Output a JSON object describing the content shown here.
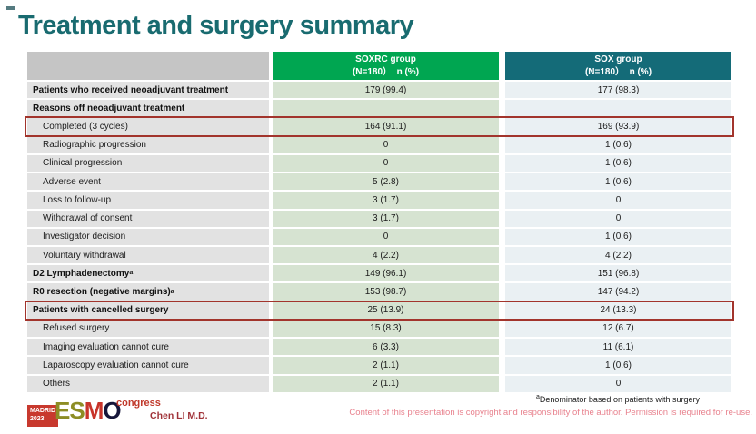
{
  "slide": {
    "title": "Treatment and surgery summary",
    "colors": {
      "title_text": "#196b70",
      "soxrc_header_bg": "#00a651",
      "sox_header_bg": "#146b78",
      "label_header_bg": "#c5c5c5",
      "label_cell_bg": "#e2e2e2",
      "soxrc_cell_bg": "#d6e3d1",
      "sox_cell_bg": "#eaf0f3",
      "highlight_border": "#a2342c",
      "copyright_text": "#e8828e"
    }
  },
  "table": {
    "columns": [
      {
        "label": "SOXRC group",
        "sublabel": "(N=180）  n (%)"
      },
      {
        "label": "SOX group",
        "sublabel": "(N=180）  n (%)"
      }
    ],
    "rows": [
      {
        "label": "Patients who received neoadjuvant treatment",
        "bold": true,
        "indent": false,
        "highlight": false,
        "soxrc": "179 (99.4)",
        "sox": "177 (98.3)"
      },
      {
        "label": "Reasons off neoadjuvant treatment",
        "bold": true,
        "indent": false,
        "highlight": false,
        "soxrc": "",
        "sox": ""
      },
      {
        "label": "Completed (3 cycles)",
        "bold": false,
        "indent": true,
        "highlight": true,
        "soxrc": "164 (91.1)",
        "sox": "169 (93.9)"
      },
      {
        "label": "Radiographic progression",
        "bold": false,
        "indent": true,
        "highlight": false,
        "soxrc": "0",
        "sox": "1 (0.6)"
      },
      {
        "label": "Clinical progression",
        "bold": false,
        "indent": true,
        "highlight": false,
        "soxrc": "0",
        "sox": "1 (0.6)"
      },
      {
        "label": "Adverse event",
        "bold": false,
        "indent": true,
        "highlight": false,
        "soxrc": "5 (2.8)",
        "sox": "1 (0.6)"
      },
      {
        "label": "Loss to follow-up",
        "bold": false,
        "indent": true,
        "highlight": false,
        "soxrc": "3 (1.7)",
        "sox": "0"
      },
      {
        "label": "Withdrawal of consent",
        "bold": false,
        "indent": true,
        "highlight": false,
        "soxrc": "3 (1.7)",
        "sox": "0"
      },
      {
        "label": "Investigator decision",
        "bold": false,
        "indent": true,
        "highlight": false,
        "soxrc": "0",
        "sox": "1 (0.6)"
      },
      {
        "label": "Voluntary withdrawal",
        "bold": false,
        "indent": true,
        "highlight": false,
        "soxrc": "4 (2.2)",
        "sox": "4 (2.2)"
      },
      {
        "label": "D2 Lymphadenectomy",
        "sup": "a",
        "bold": true,
        "indent": false,
        "highlight": false,
        "soxrc": "149 (96.1)",
        "sox": "151 (96.8)"
      },
      {
        "label": "R0 resection (negative margins)",
        "sup": "a",
        "bold": true,
        "indent": false,
        "highlight": false,
        "soxrc": "153 (98.7)",
        "sox": "147 (94.2)"
      },
      {
        "label": "Patients with cancelled surgery",
        "bold": true,
        "indent": false,
        "highlight": true,
        "soxrc": "25 (13.9)",
        "sox": "24 (13.3)"
      },
      {
        "label": "Refused surgery",
        "bold": false,
        "indent": true,
        "highlight": false,
        "soxrc": "15 (8.3)",
        "sox": "12 (6.7)"
      },
      {
        "label": "Imaging evaluation cannot cure",
        "bold": false,
        "indent": true,
        "highlight": false,
        "soxrc": "6 (3.3)",
        "sox": "11 (6.1)"
      },
      {
        "label": "Laparoscopy evaluation cannot cure",
        "bold": false,
        "indent": true,
        "highlight": false,
        "soxrc": "2 (1.1)",
        "sox": "1 (0.6)"
      },
      {
        "label": "Others",
        "bold": false,
        "indent": true,
        "highlight": false,
        "soxrc": "2 (1.1)",
        "sox": "0"
      }
    ]
  },
  "footer": {
    "logo": {
      "city": "MADRID",
      "year": "2023",
      "es": "ES",
      "m": "M",
      "o": "O",
      "congress": "congress"
    },
    "author": "Chen LI M.D.",
    "footnote_sup": "a",
    "footnote": "Denominator based on patients with surgery",
    "copyright": "Content of this presentation is copyright and responsibility of the author.  Permission is required for re-use."
  }
}
